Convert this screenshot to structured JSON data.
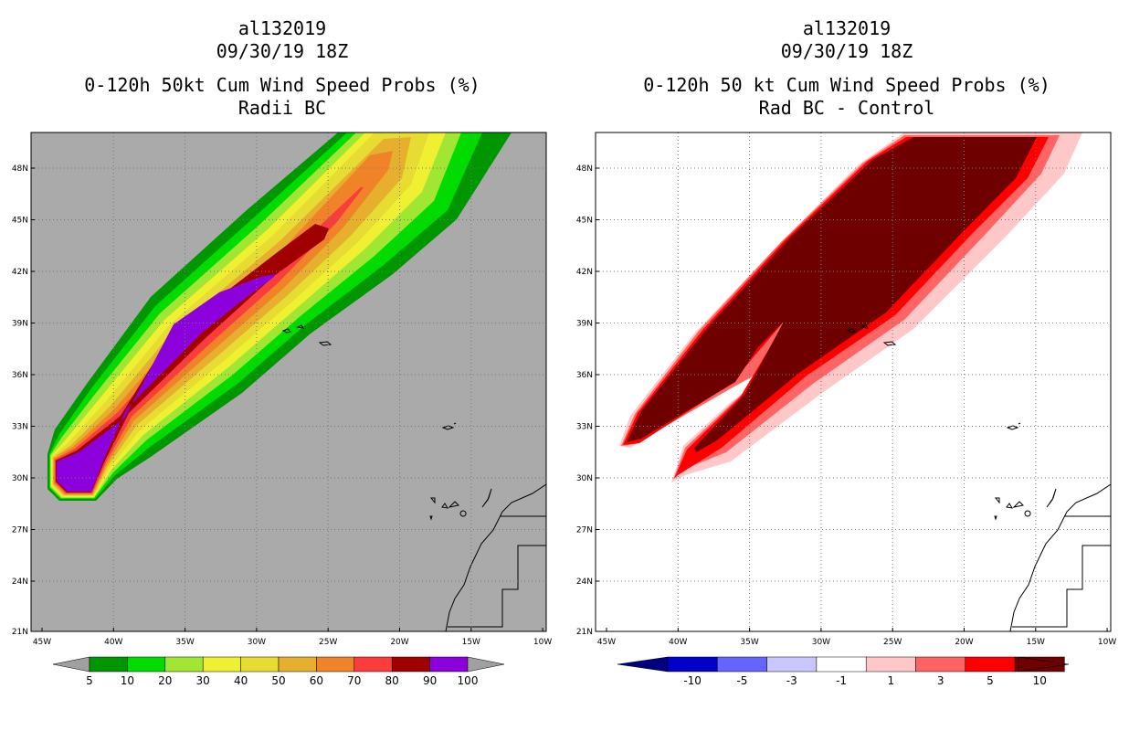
{
  "left": {
    "title": "al132019",
    "datetime": "09/30/19 18Z",
    "subtitle": "0-120h 50kt Cum Wind Speed Probs (%)",
    "subtitle2": "Radii BC",
    "colorbar": {
      "labels": [
        "5",
        "10",
        "20",
        "30",
        "40",
        "50",
        "60",
        "70",
        "80",
        "90",
        "100"
      ],
      "colors": [
        "#009600",
        "#00dc00",
        "#a0e632",
        "#f0f032",
        "#e6dc32",
        "#e6af2d",
        "#f08228",
        "#fa3c3c",
        "#a00000",
        "#8c00dc"
      ]
    }
  },
  "right": {
    "title": "al132019",
    "datetime": "09/30/19 18Z",
    "subtitle": "0-120h 50 kt Cum Wind Speed Probs (%)",
    "subtitle2": "Rad BC - Control",
    "colorbar": {
      "labels": [
        "-10",
        "-5",
        "-3",
        "-1",
        "1",
        "3",
        "5",
        "10"
      ],
      "colors": [
        "#0000c8",
        "#6464ff",
        "#c8c8ff",
        "#ffffff",
        "#ffc8c8",
        "#ff6464",
        "#ff0000",
        "#6e0000"
      ]
    }
  },
  "axes": {
    "lon_labels": [
      "45W",
      "40W",
      "35W",
      "30W",
      "25W",
      "20W",
      "15W",
      "10W"
    ],
    "lat_labels": [
      "48N",
      "45N",
      "42N",
      "39N",
      "36N",
      "33N",
      "30N",
      "27N",
      "24N",
      "21N"
    ]
  },
  "colors": {
    "land_background": "#aaaaaa",
    "edge_arrow_left": "#a0a0a0",
    "edge_arrow_neg": "#000080",
    "edge_arrow_pos": "#6e0000"
  }
}
